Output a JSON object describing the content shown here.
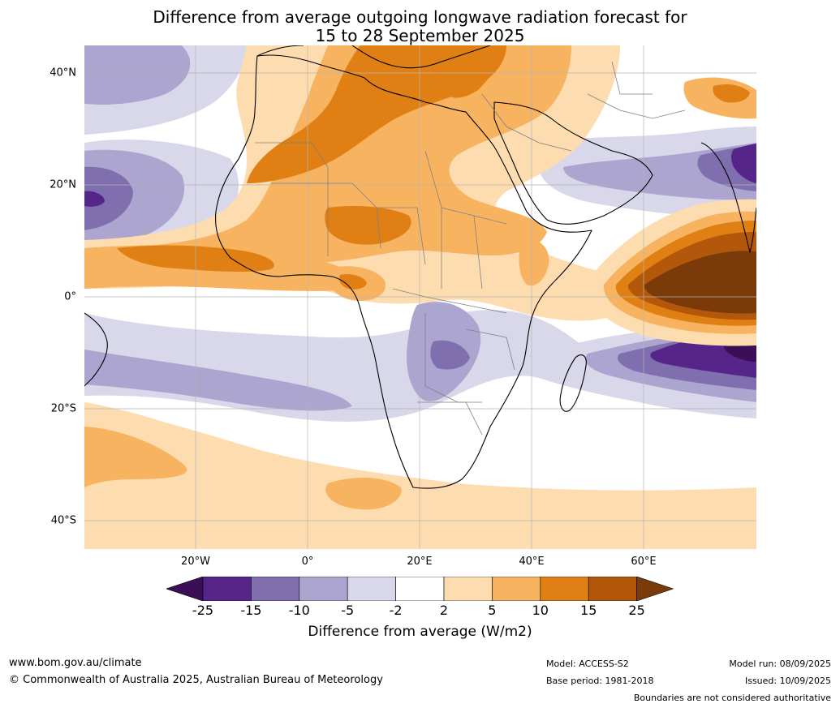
{
  "title_line1": "Difference from average outgoing longwave radiation forecast for",
  "title_line2": "15 to 28 September 2025",
  "lat_labels": [
    "40°N",
    "20°N",
    "0°",
    "20°S",
    "40°S"
  ],
  "lon_labels": [
    "20°W",
    "0°",
    "20°E",
    "40°E",
    "60°E"
  ],
  "colorbar": {
    "ticks": [
      "-25",
      "-15",
      "-10",
      "-5",
      "-2",
      "2",
      "5",
      "10",
      "15",
      "25"
    ],
    "colors": [
      "#3b0f55",
      "#55258a",
      "#7f6fae",
      "#aba5d0",
      "#d8d8ea",
      "#ffffff",
      "#fddcb0",
      "#f8b360",
      "#e07f14",
      "#b3570a",
      "#7a3a0a"
    ],
    "label": "Difference from average (W/m2)"
  },
  "footer": {
    "website": "www.bom.gov.au/climate",
    "copyright": "© Commonwealth of Australia 2025, Australian Bureau of Meteorology",
    "model": "Model: ACCESS-S2",
    "base_period": "Base period: 1981-2018",
    "model_run": "Model run: 08/09/2025",
    "issued": "Issued: 10/09/2025",
    "disclaimer": "Boundaries are not considered authoritative"
  }
}
